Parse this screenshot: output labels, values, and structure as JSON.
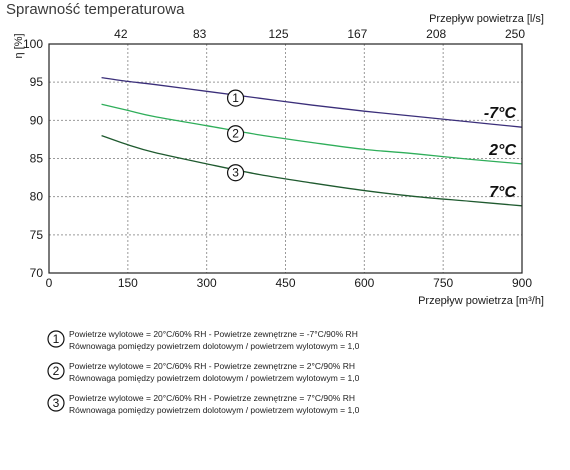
{
  "chart_data": {
    "type": "line",
    "title": "Sprawność temperaturowa",
    "ylabel": "η [%]",
    "xlabel": "Przepływ powietrza [m³/h]",
    "x2label": "Przepływ powietrza [l/s]",
    "xlim": [
      0,
      900
    ],
    "ylim": [
      70,
      100
    ],
    "x_ticks": [
      "0",
      "150",
      "300",
      "450",
      "600",
      "750",
      "900"
    ],
    "x_tick_values": [
      0,
      150,
      300,
      450,
      600,
      750,
      900
    ],
    "y_ticks": [
      "70",
      "75",
      "80",
      "85",
      "90",
      "95",
      "100"
    ],
    "y_tick_values": [
      70,
      75,
      80,
      85,
      90,
      95,
      100
    ],
    "x2_ticks": [
      "42",
      "83",
      "125",
      "167",
      "208",
      "250"
    ],
    "x2_tick_values": [
      150,
      300,
      450,
      600,
      750,
      900
    ],
    "grid": true,
    "series": [
      {
        "name": "-7°C",
        "marker": "1",
        "color": "#3b2f7a",
        "x": [
          100,
          150,
          200,
          300,
          400,
          500,
          600,
          700,
          800,
          900
        ],
        "y": [
          95.6,
          95.1,
          94.7,
          93.8,
          92.9,
          92.0,
          91.2,
          90.5,
          89.8,
          89.1
        ]
      },
      {
        "name": "2°C",
        "marker": "2",
        "color": "#2fae5a",
        "x": [
          100,
          150,
          200,
          300,
          400,
          500,
          600,
          700,
          800,
          900
        ],
        "y": [
          92.1,
          91.3,
          90.5,
          89.3,
          88.1,
          87.1,
          86.2,
          85.6,
          84.9,
          84.3
        ]
      },
      {
        "name": "7°C",
        "marker": "3",
        "color": "#1f5a2f",
        "x": [
          100,
          150,
          200,
          300,
          400,
          500,
          600,
          700,
          800,
          900
        ],
        "y": [
          88.0,
          86.8,
          85.8,
          84.3,
          82.9,
          81.8,
          80.8,
          80.0,
          79.4,
          78.8
        ]
      }
    ],
    "legend": [
      {
        "marker": "1",
        "line1": "Powietrze wylotowe = 20°C/60% RH - Powietrze zewnętrzne = -7°C/90% RH",
        "line2": "Równowaga pomiędzy powietrzem dolotowym / powietrzem wylotowym = 1,0"
      },
      {
        "marker": "2",
        "line1": "Powietrze wylotowe = 20°C/60% RH - Powietrze zewnętrzne = 2°C/90% RH",
        "line2": "Równowaga pomiędzy powietrzem dolotowym / powietrzem wylotowym = 1,0"
      },
      {
        "marker": "3",
        "line1": "Powietrze wylotowe = 20°C/60% RH - Powietrze zewnętrzne = 7°C/90% RH",
        "line2": "Równowaga pomiędzy powietrzem dolotowym / powietrzem wylotowym = 1,0"
      }
    ]
  }
}
